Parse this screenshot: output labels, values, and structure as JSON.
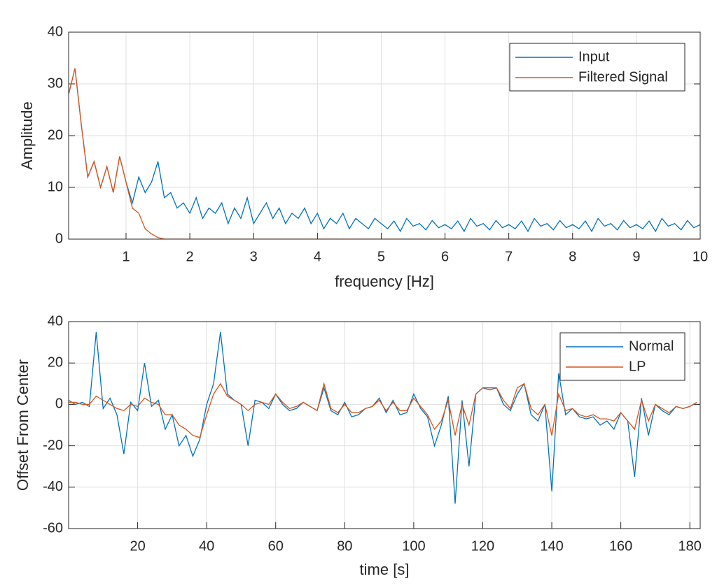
{
  "chart_data": [
    {
      "type": "line",
      "xlabel": "frequency [Hz]",
      "ylabel": "Amplitude",
      "xlim": [
        0.1,
        10
      ],
      "ylim": [
        0,
        40
      ],
      "xticks": [
        1,
        2,
        3,
        4,
        5,
        6,
        7,
        8,
        9,
        10
      ],
      "yticks": [
        0,
        10,
        20,
        30,
        40
      ],
      "grid": true,
      "legend": "upper right",
      "x": [
        0.1,
        0.2,
        0.3,
        0.4,
        0.5,
        0.6,
        0.7,
        0.8,
        0.9,
        1.0,
        1.1,
        1.2,
        1.3,
        1.4,
        1.5,
        1.6,
        1.7,
        1.8,
        1.9,
        2.0,
        2.1,
        2.2,
        2.3,
        2.4,
        2.5,
        2.6,
        2.7,
        2.8,
        2.9,
        3.0,
        3.1,
        3.2,
        3.3,
        3.4,
        3.5,
        3.6,
        3.7,
        3.8,
        3.9,
        4.0,
        4.1,
        4.2,
        4.3,
        4.4,
        4.5,
        4.6,
        4.7,
        4.8,
        4.9,
        5.0,
        5.1,
        5.2,
        5.3,
        5.4,
        5.5,
        5.6,
        5.7,
        5.8,
        5.9,
        6.0,
        6.1,
        6.2,
        6.3,
        6.4,
        6.5,
        6.6,
        6.7,
        6.8,
        6.9,
        7.0,
        7.1,
        7.2,
        7.3,
        7.4,
        7.5,
        7.6,
        7.7,
        7.8,
        7.9,
        8.0,
        8.1,
        8.2,
        8.3,
        8.4,
        8.5,
        8.6,
        8.7,
        8.8,
        8.9,
        9.0,
        9.1,
        9.2,
        9.3,
        9.4,
        9.5,
        9.6,
        9.7,
        9.8,
        9.9,
        10.0
      ],
      "series": [
        {
          "name": "Input",
          "color": "#0072bd",
          "values": [
            28,
            33,
            22,
            12,
            15,
            10,
            14,
            9,
            16,
            11,
            7,
            12,
            9,
            11,
            15,
            8,
            9,
            6,
            7,
            5,
            8,
            4,
            6,
            5,
            7,
            3,
            6,
            4,
            8,
            3,
            5,
            7,
            4,
            6,
            3,
            5,
            4,
            6,
            3,
            5,
            2,
            4,
            3,
            5,
            2,
            4,
            3,
            2,
            4,
            3,
            2,
            3.5,
            1.5,
            4,
            2.5,
            3,
            1.8,
            3.6,
            2.2,
            2.8,
            2,
            3.5,
            1.5,
            4,
            2.5,
            3,
            1.8,
            3.6,
            2.2,
            2.8,
            2,
            3.5,
            1.5,
            4,
            2.5,
            3,
            1.8,
            3.6,
            2.2,
            2.8,
            2,
            3.5,
            1.5,
            4,
            2.5,
            3,
            1.8,
            3.6,
            2.2,
            2.8,
            2,
            3.5,
            1.5,
            4,
            2.5,
            3,
            1.8,
            3.6,
            2.2,
            2.8
          ]
        },
        {
          "name": "Filtered Signal",
          "color": "#d95319",
          "values": [
            28,
            33,
            22,
            12,
            15,
            10,
            14,
            9,
            16,
            11,
            6,
            5,
            2,
            1,
            0.3,
            0,
            0,
            0,
            0,
            0,
            0,
            0,
            0,
            0,
            0,
            0,
            0,
            0,
            0,
            0,
            0,
            0,
            0,
            0,
            0,
            0,
            0,
            0,
            0,
            0,
            0,
            0,
            0,
            0,
            0,
            0,
            0,
            0,
            0,
            0,
            0,
            0,
            0,
            0,
            0,
            0,
            0,
            0,
            0,
            0,
            0,
            0,
            0,
            0,
            0,
            0,
            0,
            0,
            0,
            0,
            0,
            0,
            0,
            0,
            0,
            0,
            0,
            0,
            0,
            0,
            0,
            0,
            0,
            0,
            0,
            0,
            0,
            0,
            0,
            0,
            0,
            0,
            0,
            0,
            0,
            0,
            0,
            0,
            0,
            0
          ]
        }
      ]
    },
    {
      "type": "line",
      "xlabel": "time [s]",
      "ylabel": "Offset From Center",
      "xlim": [
        0,
        183
      ],
      "ylim": [
        -60,
        40
      ],
      "xticks": [
        20,
        40,
        60,
        80,
        100,
        120,
        140,
        160,
        180
      ],
      "yticks": [
        -60,
        -40,
        -20,
        0,
        20,
        40
      ],
      "grid": true,
      "legend": "upper right",
      "x": [
        0,
        2,
        4,
        6,
        8,
        10,
        12,
        14,
        16,
        18,
        20,
        22,
        24,
        26,
        28,
        30,
        32,
        34,
        36,
        38,
        40,
        42,
        44,
        46,
        48,
        50,
        52,
        54,
        56,
        58,
        60,
        62,
        64,
        66,
        68,
        70,
        72,
        74,
        76,
        78,
        80,
        82,
        84,
        86,
        88,
        90,
        92,
        94,
        96,
        98,
        100,
        102,
        104,
        106,
        108,
        110,
        112,
        114,
        116,
        118,
        120,
        122,
        124,
        126,
        128,
        130,
        132,
        134,
        136,
        138,
        140,
        142,
        144,
        146,
        148,
        150,
        152,
        154,
        156,
        158,
        160,
        162,
        164,
        166,
        168,
        170,
        172,
        174,
        176,
        178,
        180,
        182
      ],
      "series": [
        {
          "name": "Normal",
          "color": "#0072bd",
          "values": [
            2,
            0,
            1,
            -1,
            35,
            -2,
            3,
            -5,
            -24,
            1,
            -3,
            20,
            -1,
            2,
            -12,
            -5,
            -20,
            -15,
            -25,
            -17,
            0,
            10,
            35,
            5,
            2,
            0,
            -20,
            2,
            1,
            -2,
            5,
            0,
            -3,
            -2,
            1,
            -1,
            -3,
            8,
            -3,
            -5,
            1,
            -6,
            -5,
            -2,
            -1,
            3,
            -4,
            2,
            -5,
            -4,
            5,
            -2,
            -6,
            -20,
            -10,
            4,
            -48,
            2,
            -30,
            5,
            8,
            7,
            8,
            0,
            -3,
            5,
            10,
            -5,
            -8,
            0,
            -42,
            15,
            -5,
            -2,
            -6,
            -7,
            -6,
            -10,
            -8,
            -12,
            -4,
            -8,
            -35,
            3,
            -15,
            0,
            -3,
            -5,
            -1,
            -2,
            -1,
            1
          ]
        },
        {
          "name": "LP",
          "color": "#d95319",
          "values": [
            1,
            1,
            0,
            0,
            4,
            2,
            0,
            -2,
            -3,
            0,
            -1,
            3,
            1,
            0,
            -5,
            -5,
            -10,
            -12,
            -15,
            -16,
            -5,
            5,
            10,
            4,
            2,
            0,
            -3,
            0,
            1,
            0,
            5,
            1,
            -2,
            -1,
            1,
            -1,
            -3,
            10,
            -2,
            -4,
            0,
            -4,
            -4,
            -2,
            -1,
            2,
            -3,
            1,
            -3,
            -3,
            3,
            -1,
            -5,
            -12,
            -8,
            2,
            -15,
            0,
            -10,
            5,
            8,
            8,
            8,
            2,
            -2,
            8,
            10,
            -2,
            -5,
            0,
            -15,
            5,
            -3,
            -2,
            -5,
            -6,
            -5,
            -7,
            -7,
            -8,
            -4,
            -8,
            -12,
            2,
            -8,
            0,
            -2,
            -4,
            -1,
            -2,
            -1,
            1
          ]
        }
      ]
    }
  ]
}
